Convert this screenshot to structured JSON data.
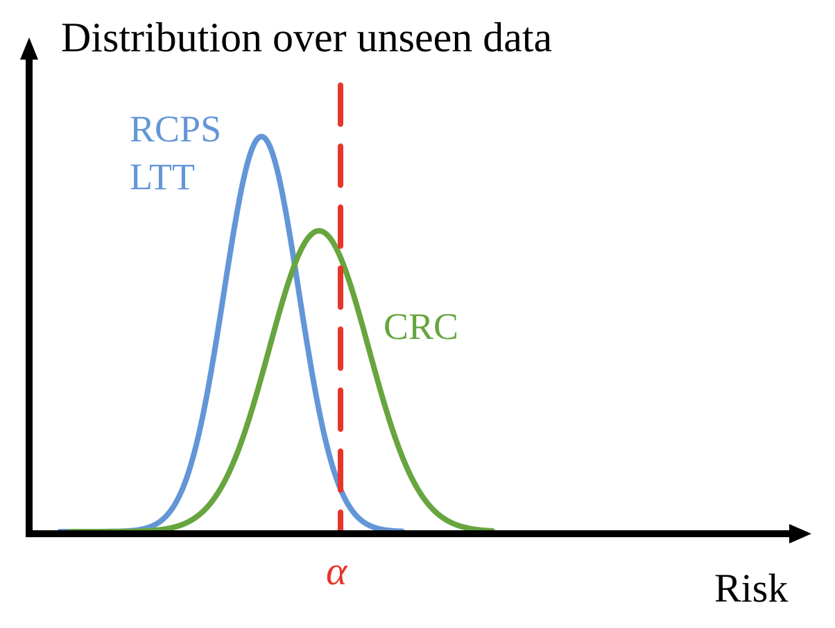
{
  "title": "Distribution over unseen data",
  "x_axis_label": "Risk",
  "threshold_label": "α",
  "curves": [
    {
      "labels": [
        "RCPS",
        "LTT"
      ],
      "color": "#6396d6"
    },
    {
      "labels": [
        "CRC"
      ],
      "color": "#67a53f"
    }
  ],
  "colors": {
    "axis": "#000000",
    "threshold": "#e8352a"
  }
}
